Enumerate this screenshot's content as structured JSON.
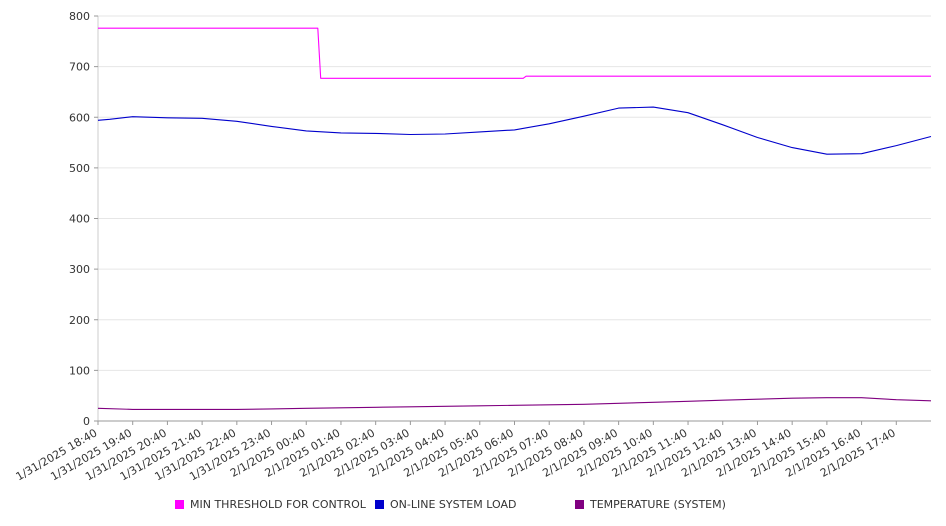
{
  "chart_data": {
    "type": "line",
    "title": "",
    "xlabel": "",
    "ylabel": "",
    "ylim": [
      0,
      800
    ],
    "y_ticks": [
      0,
      100,
      200,
      300,
      400,
      500,
      600,
      700,
      800
    ],
    "grid": "horizontal",
    "legend_position": "bottom",
    "x_tick_labels": [
      "1/31/2025 18:40",
      "1/31/2025 19:40",
      "1/31/2025 20:40",
      "1/31/2025 21:40",
      "1/31/2025 22:40",
      "1/31/2025 23:40",
      "2/1/2025 00:40",
      "2/1/2025 01:40",
      "2/1/2025 02:40",
      "2/1/2025 03:40",
      "2/1/2025 04:40",
      "2/1/2025 05:40",
      "2/1/2025 06:40",
      "2/1/2025 07:40",
      "2/1/2025 08:40",
      "2/1/2025 09:40",
      "2/1/2025 10:40",
      "2/1/2025 11:40",
      "2/1/2025 12:40",
      "2/1/2025 13:40",
      "2/1/2025 14:40",
      "2/1/2025 15:40",
      "2/1/2025 16:40",
      "2/1/2025 17:40"
    ],
    "x_range": [
      "1/31/2025 18:40",
      "2/1/2025 18:40"
    ],
    "series": [
      {
        "name": "MIN THRESHOLD FOR CONTROL",
        "color": "#ff00ff",
        "x": [
          "1/31/2025 18:40",
          "2/1/2025 01:00",
          "2/1/2025 01:05",
          "2/1/2025 06:55",
          "2/1/2025 07:00",
          "2/1/2025 18:40"
        ],
        "y": [
          776,
          776,
          677,
          677,
          681,
          681
        ]
      },
      {
        "name": "ON-LINE SYSTEM LOAD",
        "color": "#0000cc",
        "x": [
          "1/31/2025 18:40",
          "1/31/2025 19:00",
          "1/31/2025 19:40",
          "1/31/2025 20:40",
          "1/31/2025 21:40",
          "1/31/2025 22:40",
          "1/31/2025 23:40",
          "2/1/2025 00:40",
          "2/1/2025 01:40",
          "2/1/2025 02:40",
          "2/1/2025 03:40",
          "2/1/2025 04:40",
          "2/1/2025 05:40",
          "2/1/2025 06:40",
          "2/1/2025 07:40",
          "2/1/2025 08:40",
          "2/1/2025 09:40",
          "2/1/2025 10:40",
          "2/1/2025 11:40",
          "2/1/2025 12:40",
          "2/1/2025 13:40",
          "2/1/2025 14:40",
          "2/1/2025 15:40",
          "2/1/2025 16:40",
          "2/1/2025 17:40",
          "2/1/2025 18:40"
        ],
        "y": [
          594,
          596,
          601,
          599,
          598,
          592,
          582,
          573,
          569,
          568,
          566,
          567,
          571,
          575,
          587,
          602,
          618,
          620,
          609,
          585,
          560,
          540,
          527,
          528,
          544,
          562
        ]
      },
      {
        "name": "TEMPERATURE (SYSTEM)",
        "color": "#800080",
        "x": [
          "1/31/2025 18:40",
          "1/31/2025 19:40",
          "1/31/2025 20:40",
          "1/31/2025 21:40",
          "1/31/2025 22:40",
          "1/31/2025 23:40",
          "2/1/2025 00:40",
          "2/1/2025 01:40",
          "2/1/2025 02:40",
          "2/1/2025 03:40",
          "2/1/2025 04:40",
          "2/1/2025 05:40",
          "2/1/2025 06:40",
          "2/1/2025 07:40",
          "2/1/2025 08:40",
          "2/1/2025 09:40",
          "2/1/2025 10:40",
          "2/1/2025 11:40",
          "2/1/2025 12:40",
          "2/1/2025 13:40",
          "2/1/2025 14:40",
          "2/1/2025 15:40",
          "2/1/2025 16:40",
          "2/1/2025 17:40",
          "2/1/2025 18:40"
        ],
        "y": [
          25,
          23,
          23,
          23,
          23,
          24,
          25,
          26,
          27,
          28,
          29,
          30,
          31,
          32,
          33,
          35,
          37,
          39,
          41,
          43,
          45,
          46,
          46,
          42,
          40
        ]
      }
    ]
  }
}
